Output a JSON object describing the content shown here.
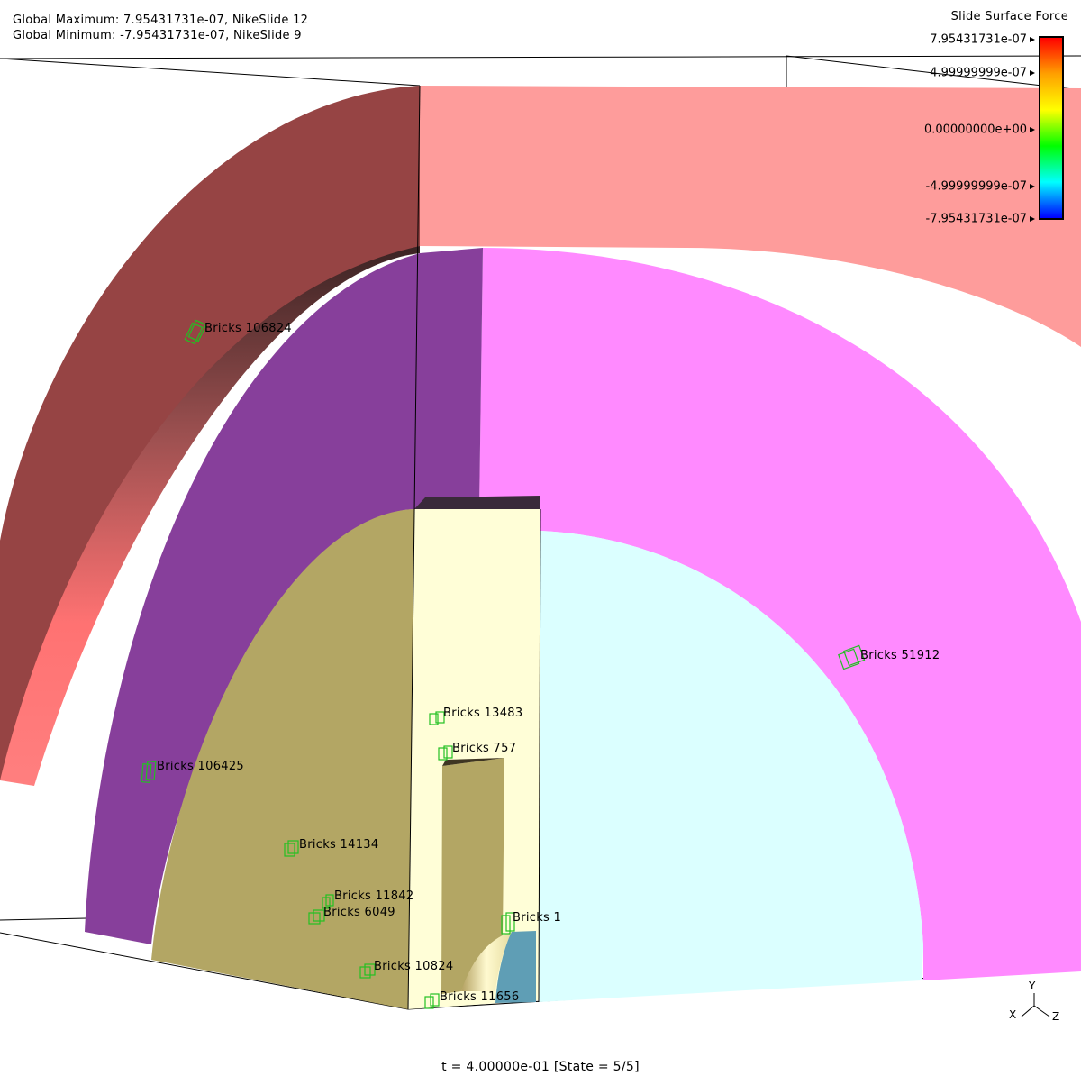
{
  "header": {
    "global_max": "Global Maximum: 7.95431731e-07, NikeSlide 12",
    "global_min": "Global Minimum: -7.95431731e-07, NikeSlide 9"
  },
  "legend": {
    "title": "Slide Surface Force",
    "ticks": [
      "7.95431731e-07",
      "4.99999999e-07",
      "0.00000000e+00",
      "-4.99999999e-07",
      "-7.95431731e-07"
    ],
    "colors": [
      "#ff0000",
      "#ffa000",
      "#ffff00",
      "#00ff00",
      "#00ffff",
      "#0000ff"
    ]
  },
  "bricks": [
    "Bricks 106824",
    "Bricks 51912",
    "Bricks 13483",
    "Bricks 757",
    "Bricks 106425",
    "Bricks 14134",
    "Bricks 11842",
    "Bricks 6049",
    "Bricks 1",
    "Bricks 10824",
    "Bricks 11656"
  ],
  "axes": {
    "y": "Y",
    "x": "X",
    "z": "Z"
  },
  "status": "t = 4.00000e-01 [State = 5/5]",
  "colors": {
    "outer_shell_front": "#fe9c9b",
    "outer_shell_cut": "#964444",
    "middle_shell_front": "#ff8aff",
    "middle_shell_cut": "#873f9b",
    "inner_block_cut": "#b3a664",
    "inner_block_side": "#fffed7",
    "core_front": "#dbffff",
    "core_cut": "#5f9eb5"
  }
}
